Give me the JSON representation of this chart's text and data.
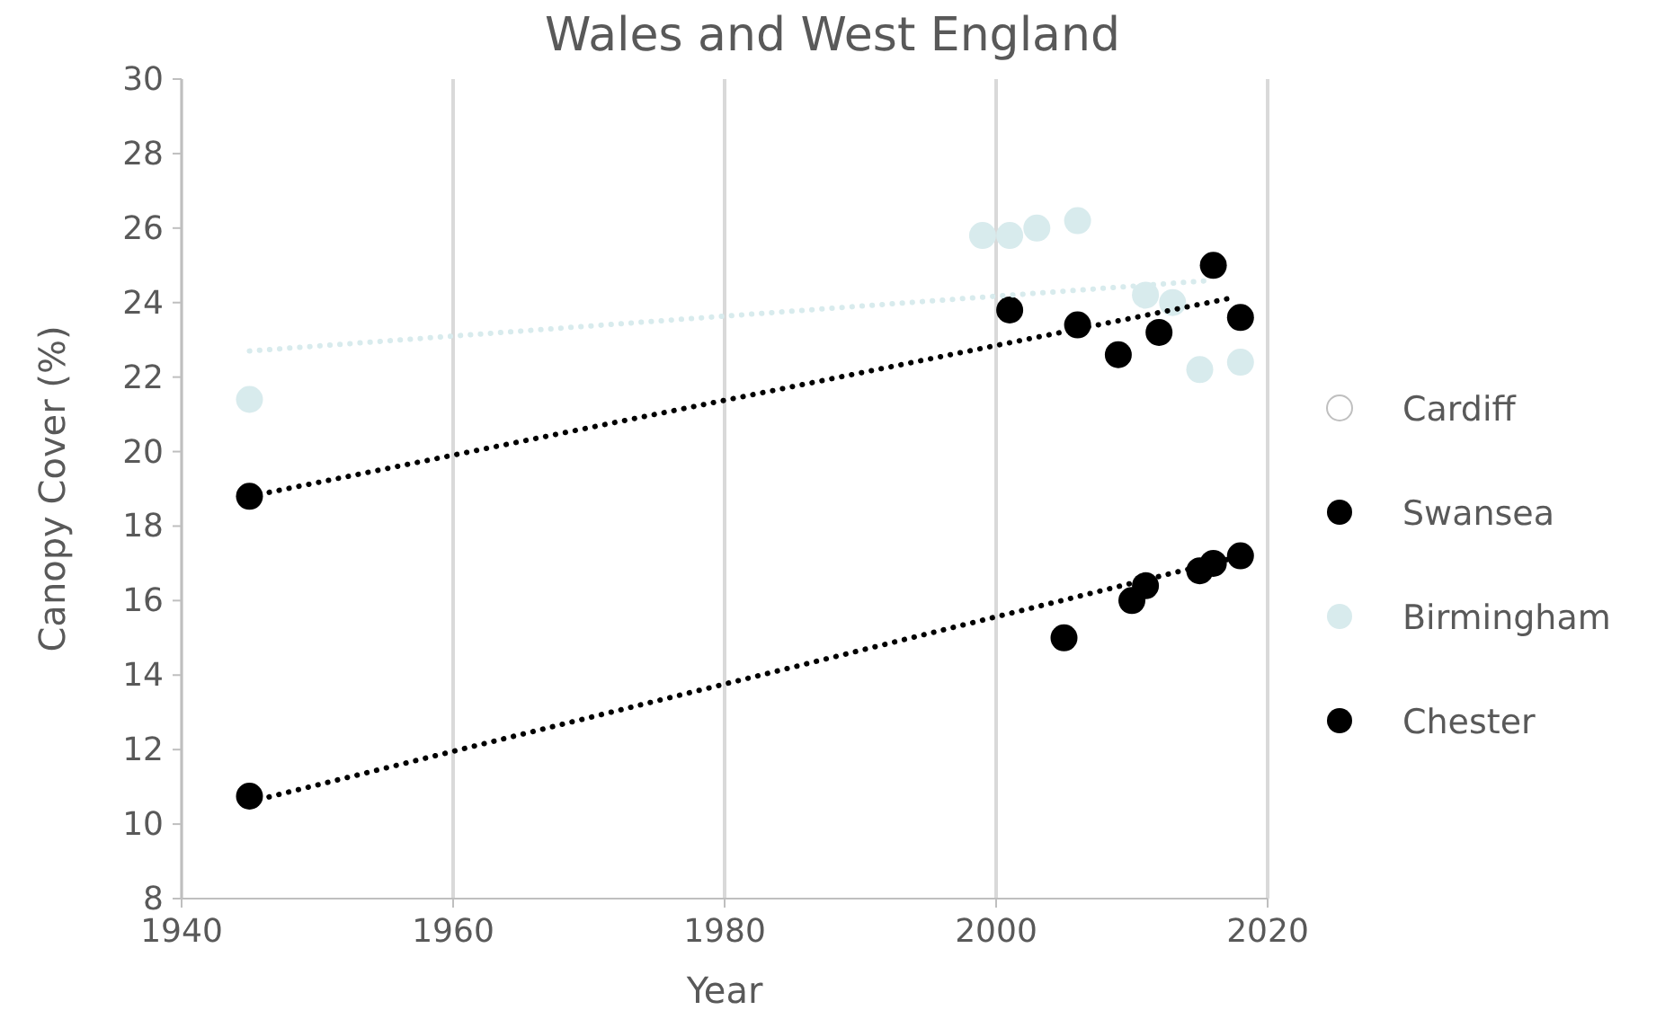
{
  "chart_data": {
    "type": "scatter",
    "title": "Wales and West England",
    "xlabel": "Year",
    "ylabel": "Canopy Cover (%)",
    "xlim": [
      1940,
      2020
    ],
    "xticks": [
      1940,
      1960,
      1980,
      2000,
      2020
    ],
    "ylim": [
      8,
      30
    ],
    "yticks": [
      8,
      10,
      12,
      14,
      16,
      18,
      20,
      22,
      24,
      26,
      28,
      30
    ],
    "grid": "x",
    "legend": "right",
    "marker": "circle",
    "series": [
      {
        "name": "Cardiff",
        "color": "#ffffff"
      },
      {
        "name": "Swansea",
        "color": "#000000",
        "x": [
          1945,
          2001,
          2006,
          2009,
          2012,
          2016,
          2018
        ],
        "values": [
          18.8,
          23.8,
          23.4,
          22.6,
          23.2,
          25.0,
          23.6
        ]
      },
      {
        "name": "Birmingham",
        "color": "#d8ebed",
        "x": [
          1945,
          1999,
          2001,
          2003,
          2006,
          2011,
          2013,
          2015,
          2018
        ],
        "values": [
          21.4,
          25.8,
          25.8,
          26.0,
          26.2,
          24.2,
          24.0,
          22.2,
          22.4
        ]
      },
      {
        "name": "Chester",
        "color": "#000000",
        "x": [
          1945,
          2005,
          2010,
          2011,
          2015,
          2016,
          2018
        ],
        "values": [
          10.75,
          15.0,
          16.0,
          16.4,
          16.8,
          17.0,
          17.2
        ]
      },
      {
        "type": "line",
        "color": "#000000",
        "line_style": "dotted",
        "marker": "none",
        "x": [
          1945,
          2017
        ],
        "values": [
          18.8,
          24.1
        ]
      },
      {
        "type": "line",
        "color": "#d8ebed",
        "line_style": "dotted",
        "marker": "none",
        "x": [
          1945,
          2016
        ],
        "values": [
          22.7,
          24.6
        ]
      },
      {
        "type": "line",
        "color": "#000000",
        "line_style": "dotted",
        "marker": "none",
        "x": [
          1945,
          2017
        ],
        "values": [
          10.6,
          17.1
        ]
      }
    ]
  }
}
